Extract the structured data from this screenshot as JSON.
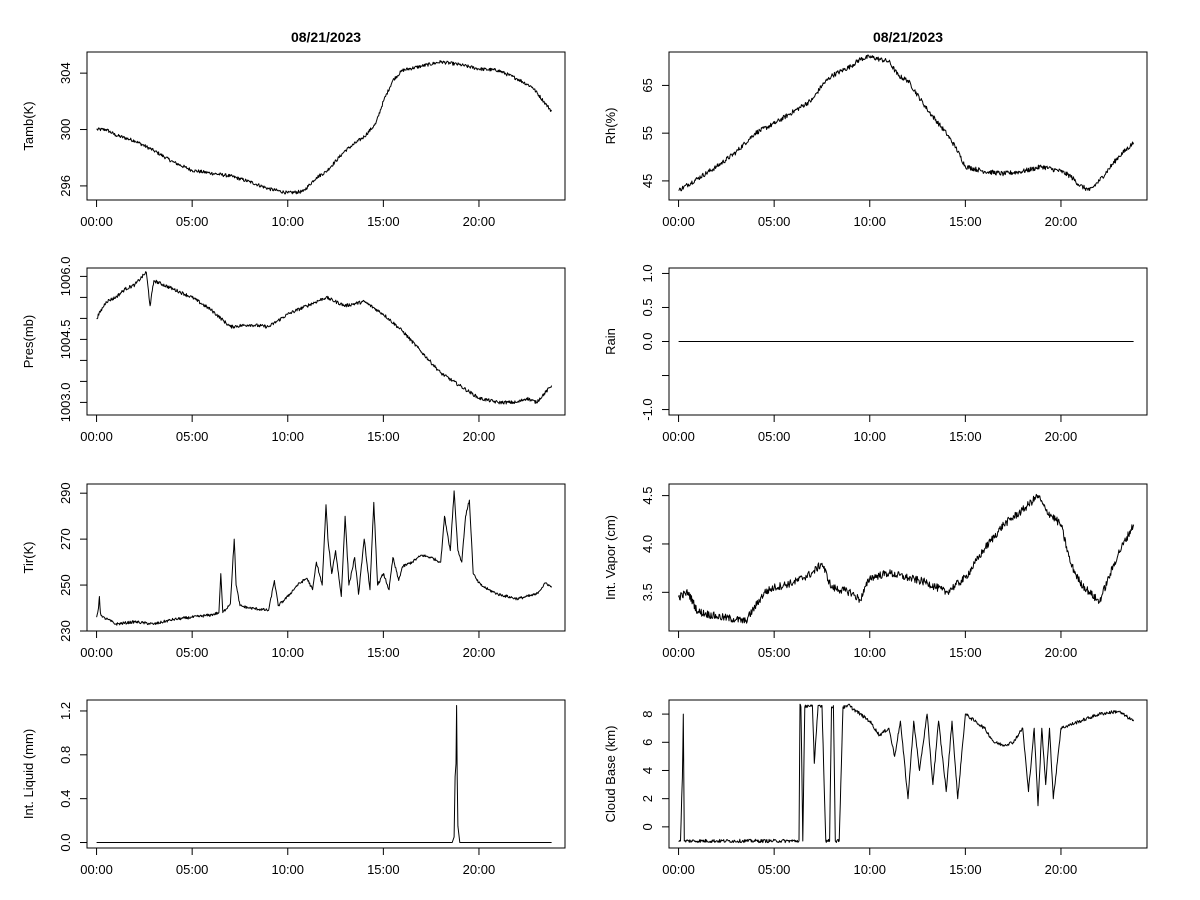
{
  "chart_data": [
    {
      "id": "tamb",
      "type": "line",
      "title": "08/21/2023",
      "ylabel": "Tamb(K)",
      "xlim": [
        -0.5,
        24.5
      ],
      "ylim": [
        295,
        305.5
      ],
      "xticks": [
        0,
        5,
        10,
        15,
        20
      ],
      "xtick_labels": [
        "00:00",
        "05:00",
        "10:00",
        "15:00",
        "20:00"
      ],
      "yticks": [
        296,
        300,
        304
      ],
      "ytick_labels": [
        "296",
        "300",
        "304"
      ],
      "noise": 0.12,
      "series": [
        {
          "x": [
            0,
            0.5,
            1,
            2,
            3,
            4,
            5,
            6,
            7,
            8,
            9,
            10,
            10.8,
            11.5,
            12,
            13,
            14,
            14.6,
            15,
            15.5,
            16,
            17,
            18,
            19,
            20,
            21,
            22,
            22.8,
            23.5,
            23.8
          ],
          "y": [
            300,
            300,
            299.6,
            299.2,
            298.5,
            297.7,
            297.1,
            296.9,
            296.7,
            296.3,
            295.8,
            295.5,
            295.6,
            296.6,
            297,
            298.5,
            299.5,
            300.4,
            302,
            303.5,
            304.2,
            304.5,
            304.8,
            304.6,
            304.3,
            304.2,
            303.6,
            303,
            301.8,
            301.3
          ]
        }
      ]
    },
    {
      "id": "rh",
      "type": "line",
      "title": "08/21/2023",
      "ylabel": "Rh(%)",
      "xlim": [
        -0.5,
        24.5
      ],
      "ylim": [
        41,
        72
      ],
      "xticks": [
        0,
        5,
        10,
        15,
        20
      ],
      "xtick_labels": [
        "00:00",
        "05:00",
        "10:00",
        "15:00",
        "20:00"
      ],
      "yticks": [
        45,
        55,
        65
      ],
      "ytick_labels": [
        "45",
        "55",
        "65"
      ],
      "noise": 0.5,
      "series": [
        {
          "x": [
            0,
            1,
            2,
            3,
            4,
            5,
            6,
            7,
            7.5,
            8,
            9,
            9.5,
            10,
            10.5,
            11,
            11.5,
            12,
            13,
            14,
            14.5,
            15,
            16,
            17,
            18,
            19,
            20,
            20.5,
            21,
            21.5,
            22,
            23,
            23.8
          ],
          "y": [
            43,
            45.5,
            48,
            51,
            55,
            57,
            59.5,
            62,
            65,
            67,
            69,
            70.5,
            71,
            70.5,
            70,
            67,
            66,
            60,
            55,
            52,
            48,
            47,
            46.5,
            47,
            48,
            47,
            46,
            44,
            43,
            45,
            50,
            53
          ]
        }
      ]
    },
    {
      "id": "pres",
      "type": "line",
      "ylabel": "Pres(mb)",
      "xlim": [
        -0.5,
        24.5
      ],
      "ylim": [
        1002.7,
        1006.2
      ],
      "xticks": [
        0,
        5,
        10,
        15,
        20
      ],
      "xtick_labels": [
        "00:00",
        "05:00",
        "10:00",
        "15:00",
        "20:00"
      ],
      "yticks": [
        1003,
        1004.5,
        1006
      ],
      "ytick_labels": [
        "1003.0",
        "1004.5",
        "1006.0"
      ],
      "yticks_minor": [
        1003,
        1003.5,
        1004,
        1004.5,
        1005,
        1005.5,
        1006
      ],
      "noise": 0.04,
      "series": [
        {
          "x": [
            0,
            0.5,
            1,
            1.5,
            2,
            2.6,
            2.8,
            3,
            4,
            5,
            6,
            7,
            8,
            9,
            10,
            11,
            12,
            13,
            14,
            15,
            16,
            17,
            18,
            19,
            20,
            21,
            22,
            22.5,
            23,
            23.8
          ],
          "y": [
            1005.0,
            1005.4,
            1005.5,
            1005.7,
            1005.8,
            1006.1,
            1005.3,
            1005.9,
            1005.7,
            1005.5,
            1005.2,
            1004.8,
            1004.85,
            1004.8,
            1005.1,
            1005.3,
            1005.5,
            1005.3,
            1005.4,
            1005.1,
            1004.7,
            1004.2,
            1003.7,
            1003.4,
            1003.1,
            1003.0,
            1003.0,
            1003.1,
            1003.0,
            1003.4
          ]
        }
      ]
    },
    {
      "id": "rain",
      "type": "line",
      "ylabel": "Rain",
      "xlim": [
        -0.5,
        24.5
      ],
      "ylim": [
        -1.08,
        1.08
      ],
      "xticks": [
        0,
        5,
        10,
        15,
        20
      ],
      "xtick_labels": [
        "00:00",
        "05:00",
        "10:00",
        "15:00",
        "20:00"
      ],
      "yticks": [
        -1,
        -0.5,
        0,
        0.5,
        1
      ],
      "ytick_labels": [
        "-1.0",
        "",
        "0.0",
        "0.5",
        "1.0"
      ],
      "noise": 0,
      "series": [
        {
          "x": [
            0,
            23.8
          ],
          "y": [
            0,
            0
          ]
        }
      ]
    },
    {
      "id": "tir",
      "type": "line",
      "ylabel": "Tir(K)",
      "xlim": [
        -0.5,
        24.5
      ],
      "ylim": [
        230,
        294
      ],
      "xticks": [
        0,
        5,
        10,
        15,
        20
      ],
      "xtick_labels": [
        "00:00",
        "05:00",
        "10:00",
        "15:00",
        "20:00"
      ],
      "yticks": [
        230,
        250,
        270,
        290
      ],
      "ytick_labels": [
        "230",
        "250",
        "270",
        "290"
      ],
      "noise": 0.6,
      "series": [
        {
          "x": [
            0,
            0.1,
            0.15,
            0.2,
            0.3,
            0.6,
            1,
            2,
            3,
            4,
            5,
            6,
            6.4,
            6.5,
            6.6,
            7,
            7.2,
            7.3,
            7.5,
            8,
            9,
            9.3,
            9.5,
            10,
            10.5,
            11,
            11.3,
            11.5,
            11.8,
            12,
            12.1,
            12.3,
            12.5,
            12.8,
            13,
            13.2,
            13.5,
            13.7,
            14,
            14.3,
            14.5,
            14.7,
            15,
            15.3,
            15.5,
            15.8,
            16,
            16.5,
            17,
            17.5,
            18,
            18.2,
            18.5,
            18.7,
            18.9,
            19.1,
            19.3,
            19.5,
            19.7,
            19.9,
            20.1,
            20.5,
            21,
            22,
            23,
            23.5,
            23.8
          ],
          "y": [
            236,
            240,
            245,
            238,
            236,
            235,
            233,
            234,
            233,
            235,
            236,
            237,
            238,
            255,
            238,
            242,
            270,
            250,
            241,
            240,
            239,
            252,
            241,
            245,
            250,
            253,
            248,
            260,
            250,
            285,
            270,
            255,
            265,
            245,
            280,
            250,
            262,
            246,
            270,
            248,
            286,
            250,
            255,
            248,
            262,
            252,
            258,
            260,
            263,
            262,
            260,
            280,
            265,
            291,
            265,
            260,
            280,
            287,
            255,
            252,
            250,
            248,
            246,
            244,
            246,
            251,
            249
          ]
        }
      ]
    },
    {
      "id": "vapor",
      "type": "line",
      "ylabel": "Int. Vapor (cm)",
      "xlim": [
        -0.5,
        24.5
      ],
      "ylim": [
        3.1,
        4.62
      ],
      "xticks": [
        0,
        5,
        10,
        15,
        20
      ],
      "xtick_labels": [
        "00:00",
        "05:00",
        "10:00",
        "15:00",
        "20:00"
      ],
      "yticks": [
        3.5,
        4.0,
        4.5
      ],
      "ytick_labels": [
        "3.5",
        "4.0",
        "4.5"
      ],
      "noise": 0.04,
      "series": [
        {
          "x": [
            0,
            0.5,
            1,
            2,
            3,
            3.5,
            4,
            4.5,
            5,
            6,
            7,
            7.5,
            8,
            9,
            9.5,
            10,
            11,
            12,
            13,
            14,
            15,
            15.5,
            16,
            17,
            18,
            18.8,
            19.2,
            20,
            20.5,
            21,
            21.5,
            22,
            23,
            23.8
          ],
          "y": [
            3.45,
            3.5,
            3.3,
            3.25,
            3.22,
            3.2,
            3.35,
            3.5,
            3.55,
            3.6,
            3.7,
            3.8,
            3.55,
            3.5,
            3.42,
            3.65,
            3.7,
            3.65,
            3.6,
            3.5,
            3.65,
            3.8,
            3.95,
            4.2,
            4.35,
            4.5,
            4.35,
            4.2,
            3.8,
            3.6,
            3.5,
            3.4,
            3.9,
            4.2
          ]
        }
      ]
    },
    {
      "id": "liquid",
      "type": "line",
      "ylabel": "Int. Liquid (mm)",
      "xlim": [
        -0.5,
        24.5
      ],
      "ylim": [
        -0.05,
        1.3
      ],
      "xticks": [
        0,
        5,
        10,
        15,
        20
      ],
      "xtick_labels": [
        "00:00",
        "05:00",
        "10:00",
        "15:00",
        "20:00"
      ],
      "yticks": [
        0,
        0.4,
        0.8,
        1.2
      ],
      "ytick_labels": [
        "0.0",
        "0.4",
        "0.8",
        "1.2"
      ],
      "noise": 0,
      "series": [
        {
          "x": [
            0,
            18.6,
            18.7,
            18.75,
            18.8,
            18.83,
            18.86,
            18.9,
            19.0,
            23.8
          ],
          "y": [
            0,
            0,
            0.05,
            0.6,
            0.72,
            1.25,
            0.6,
            0.15,
            0,
            0
          ]
        }
      ]
    },
    {
      "id": "cloudbase",
      "type": "line",
      "ylabel": "Cloud Base (km)",
      "xlim": [
        -0.5,
        24.5
      ],
      "ylim": [
        -1.5,
        9.0
      ],
      "xticks": [
        0,
        5,
        10,
        15,
        20
      ],
      "xtick_labels": [
        "00:00",
        "05:00",
        "10:00",
        "15:00",
        "20:00"
      ],
      "yticks": [
        0,
        2,
        4,
        6,
        8
      ],
      "ytick_labels": [
        "0",
        "2",
        "4",
        "6",
        "8"
      ],
      "noise": 0.12,
      "series": [
        {
          "x": [
            0,
            0.1,
            0.2,
            0.25,
            0.3,
            0.35,
            6.3,
            6.35,
            6.4,
            6.5,
            6.6,
            6.7,
            6.8,
            7.0,
            7.1,
            7.3,
            7.5,
            7.7,
            7.9,
            8.0,
            8.1,
            8.2,
            8.4,
            8.6,
            8.8,
            8.9,
            9.0,
            9.5,
            10.0,
            10.5,
            11,
            11.3,
            11.6,
            12,
            12.3,
            12.6,
            13,
            13.3,
            13.6,
            14,
            14.3,
            14.6,
            15,
            15.5,
            16,
            16.5,
            17,
            17.5,
            18,
            18.3,
            18.6,
            18.8,
            19.0,
            19.2,
            19.4,
            19.6,
            20,
            21,
            22,
            23,
            23.8
          ],
          "y": [
            -1,
            -1,
            3.5,
            8,
            -1,
            -1,
            -1,
            8.7,
            8.5,
            -1,
            8.5,
            8.6,
            8.6,
            8.6,
            4.5,
            8.6,
            8.6,
            -1,
            -1,
            8.5,
            8.6,
            -1,
            -1,
            8.5,
            8.5,
            8.7,
            8.5,
            8,
            7.5,
            6.5,
            7,
            5,
            7.5,
            2,
            7.5,
            4,
            8,
            3,
            7.5,
            2.5,
            7.5,
            2,
            8,
            7.5,
            7,
            6,
            5.8,
            6,
            7,
            2.5,
            7,
            1.5,
            7,
            3,
            7,
            2,
            7,
            7.5,
            8,
            8.2,
            7.5
          ]
        }
      ]
    }
  ]
}
